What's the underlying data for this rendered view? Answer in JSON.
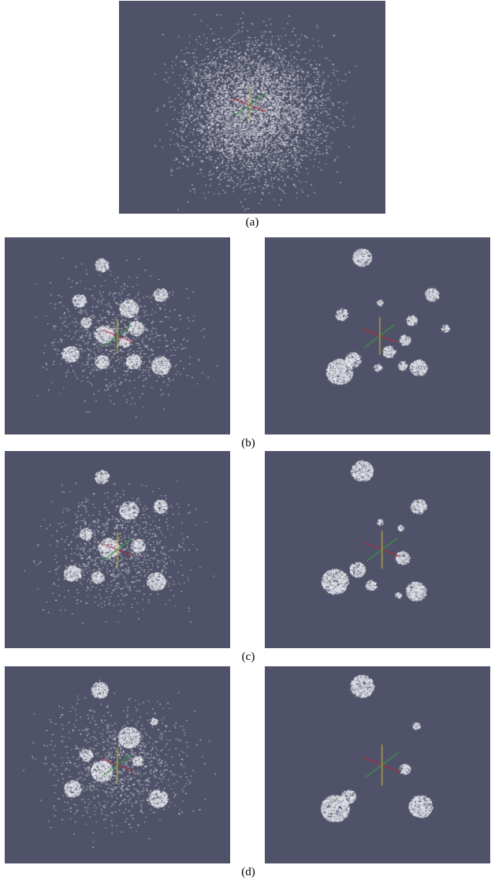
{
  "captions": {
    "a": "(a)",
    "b": "(b)",
    "c": "(c)",
    "d": "(d)"
  },
  "colors": {
    "background": "#4f5268",
    "points": "#ecedf2",
    "axis_x": "#b0313e",
    "axis_y": "#c9b23a",
    "axis_z": "#3f9a4a"
  }
}
